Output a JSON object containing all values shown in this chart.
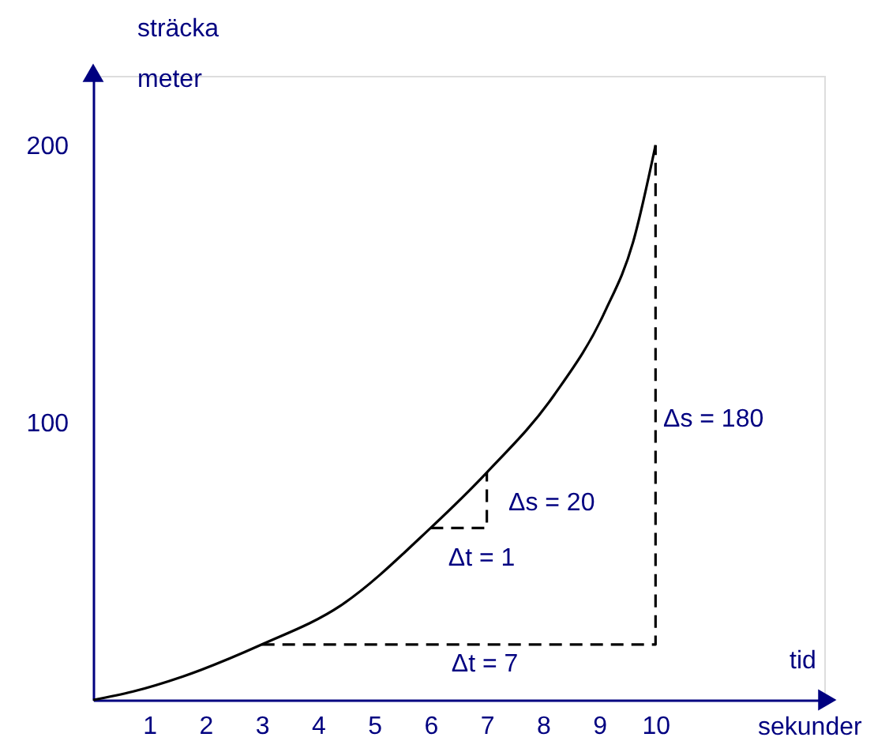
{
  "chart_data": {
    "type": "line",
    "xlabel": "tid\nsekunder",
    "ylabel": "sträcka\nmeter",
    "xlim": [
      0,
      13
    ],
    "ylim": [
      0,
      225
    ],
    "xticks": [
      1,
      2,
      3,
      4,
      5,
      6,
      7,
      8,
      9,
      10
    ],
    "yticks": [
      100,
      200
    ],
    "grid": false,
    "marker": "none",
    "series": [
      {
        "color": "#000000",
        "line_style": "solid",
        "x": [
          0,
          0.7,
          1.6,
          3,
          4.4,
          6,
          7,
          8.2,
          9.1,
          9.6,
          10
        ],
        "values": [
          0,
          3,
          8.5,
          20,
          34,
          62,
          82,
          110,
          140,
          165,
          200
        ]
      },
      {
        "color": "#000000",
        "line_style": "dashed",
        "x": [
          3,
          10,
          10
        ],
        "values": [
          20,
          20,
          200
        ]
      },
      {
        "color": "#000000",
        "line_style": "dashed",
        "x": [
          6,
          7,
          7
        ],
        "values": [
          62,
          62,
          82
        ]
      }
    ],
    "annotations": [
      "Δs = 180",
      "Δs = 20",
      "Δt = 1",
      "Δt = 7"
    ]
  }
}
